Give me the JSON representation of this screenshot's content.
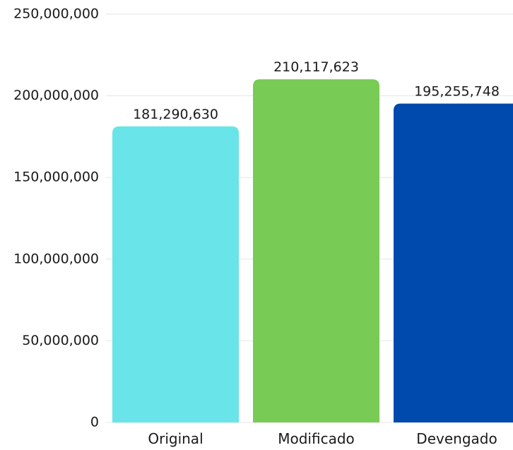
{
  "chart_data": {
    "type": "bar",
    "categories": [
      "Original",
      "Modificado",
      "Devengado"
    ],
    "values": [
      181290630,
      210117623,
      195255748
    ],
    "value_labels": [
      "181,290,630",
      "210,117,623",
      "195,255,748"
    ],
    "colors": [
      "#69e4e8",
      "#78cb55",
      "#004aad"
    ],
    "title": "",
    "xlabel": "",
    "ylabel": "",
    "ylim": [
      0,
      250000000
    ],
    "y_ticks": [
      0,
      50000000,
      100000000,
      150000000,
      200000000,
      250000000
    ],
    "y_tick_labels": [
      "0",
      "50,000,000",
      "100,000,000",
      "150,000,000",
      "200,000,000",
      "250,000,000"
    ],
    "grid": true,
    "legend": "none"
  }
}
